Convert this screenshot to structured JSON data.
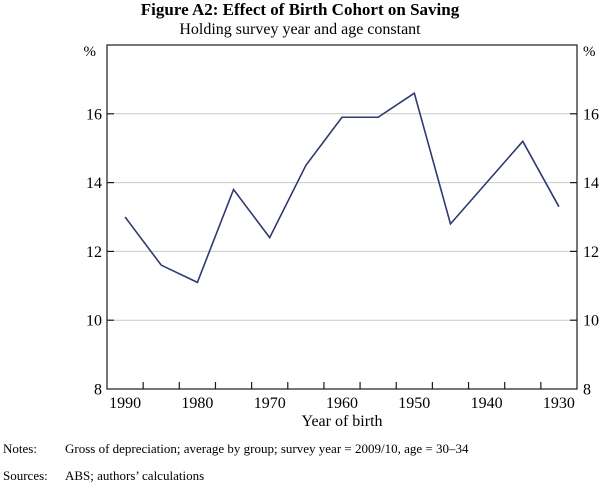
{
  "figure": {
    "title": "Figure A2: Effect of Birth Cohort on Saving",
    "subtitle": "Holding survey year and age constant"
  },
  "chart_data": {
    "type": "line",
    "title": "Figure A2: Effect of Birth Cohort on Saving",
    "subtitle": "Holding survey year and age constant",
    "xlabel": "Year of birth",
    "unit_left": "%",
    "unit_right": "%",
    "x": [
      1990,
      1985,
      1980,
      1975,
      1970,
      1965,
      1960,
      1955,
      1950,
      1945,
      1940,
      1935,
      1930
    ],
    "values": [
      13.0,
      11.6,
      11.1,
      13.8,
      12.4,
      14.5,
      15.9,
      15.9,
      16.6,
      12.8,
      14.0,
      15.2,
      13.3
    ],
    "x_axis": {
      "reversed": true,
      "min": 1927.5,
      "max": 1992.5,
      "tick_step": 5,
      "labels": [
        "1990",
        "1980",
        "1970",
        "1960",
        "1950",
        "1940",
        "1930"
      ],
      "label_years": [
        1990,
        1980,
        1970,
        1960,
        1950,
        1940,
        1930
      ]
    },
    "y_axis": {
      "min": 8,
      "max": 18,
      "labeled_ticks": [
        8,
        10,
        12,
        14,
        16
      ],
      "grid_ticks": [
        10,
        12,
        14,
        16
      ]
    },
    "grid": true,
    "legend": "none",
    "line_color": "#303a70",
    "grid_color": "#c9c9c9",
    "axis_color": "#1a1a1a"
  },
  "footer": {
    "notes_label": "Notes:",
    "notes_text": "Gross of depreciation; average by group; survey year = 2009/10, age = 30–34",
    "sources_label": "Sources:",
    "sources_text": "ABS; authors’ calculations"
  }
}
